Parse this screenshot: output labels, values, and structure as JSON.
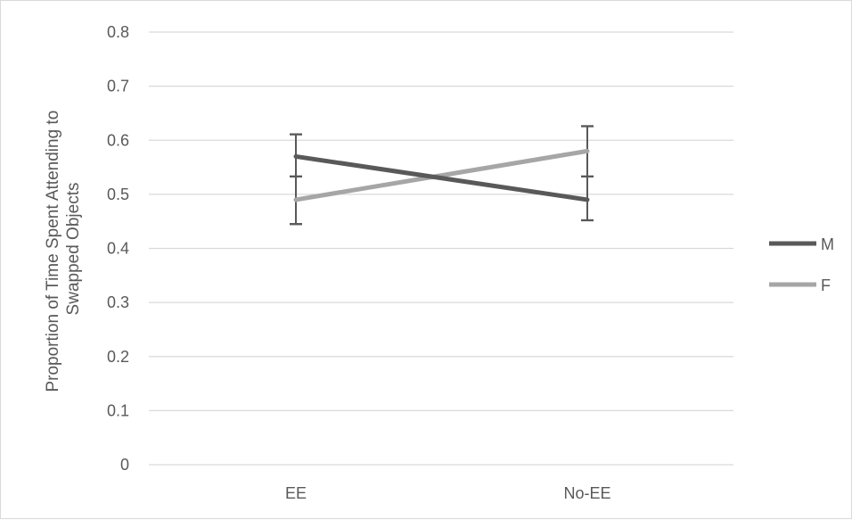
{
  "chart_data": {
    "type": "line",
    "title": "",
    "xlabel": "",
    "ylabel": "Proportion of Time Spent Attending to Swapped Objects",
    "ylabel_lines": [
      "Proportion of Time Spent Attending to",
      "Swapped Objects"
    ],
    "categories": [
      "EE",
      "No-EE"
    ],
    "ylim": [
      0,
      0.8
    ],
    "yticks": [
      "0",
      "0.1",
      "0.2",
      "0.3",
      "0.4",
      "0.5",
      "0.6",
      "0.7",
      "0.8"
    ],
    "grid": true,
    "legend_position": "right",
    "series": [
      {
        "name": "M",
        "color": "#595959",
        "values": [
          0.57,
          0.49
        ],
        "error_low": [
          0.445,
          0.452
        ],
        "error_high": [
          0.611,
          0.626
        ],
        "error_caps_mid": [
          0.533,
          0.533
        ]
      },
      {
        "name": "F",
        "color": "#a6a6a6",
        "values": [
          0.49,
          0.58
        ],
        "error_low": [
          0.445,
          0.452
        ],
        "error_high": [
          0.611,
          0.626
        ],
        "error_caps_mid": [
          0.533,
          0.533
        ]
      }
    ]
  }
}
